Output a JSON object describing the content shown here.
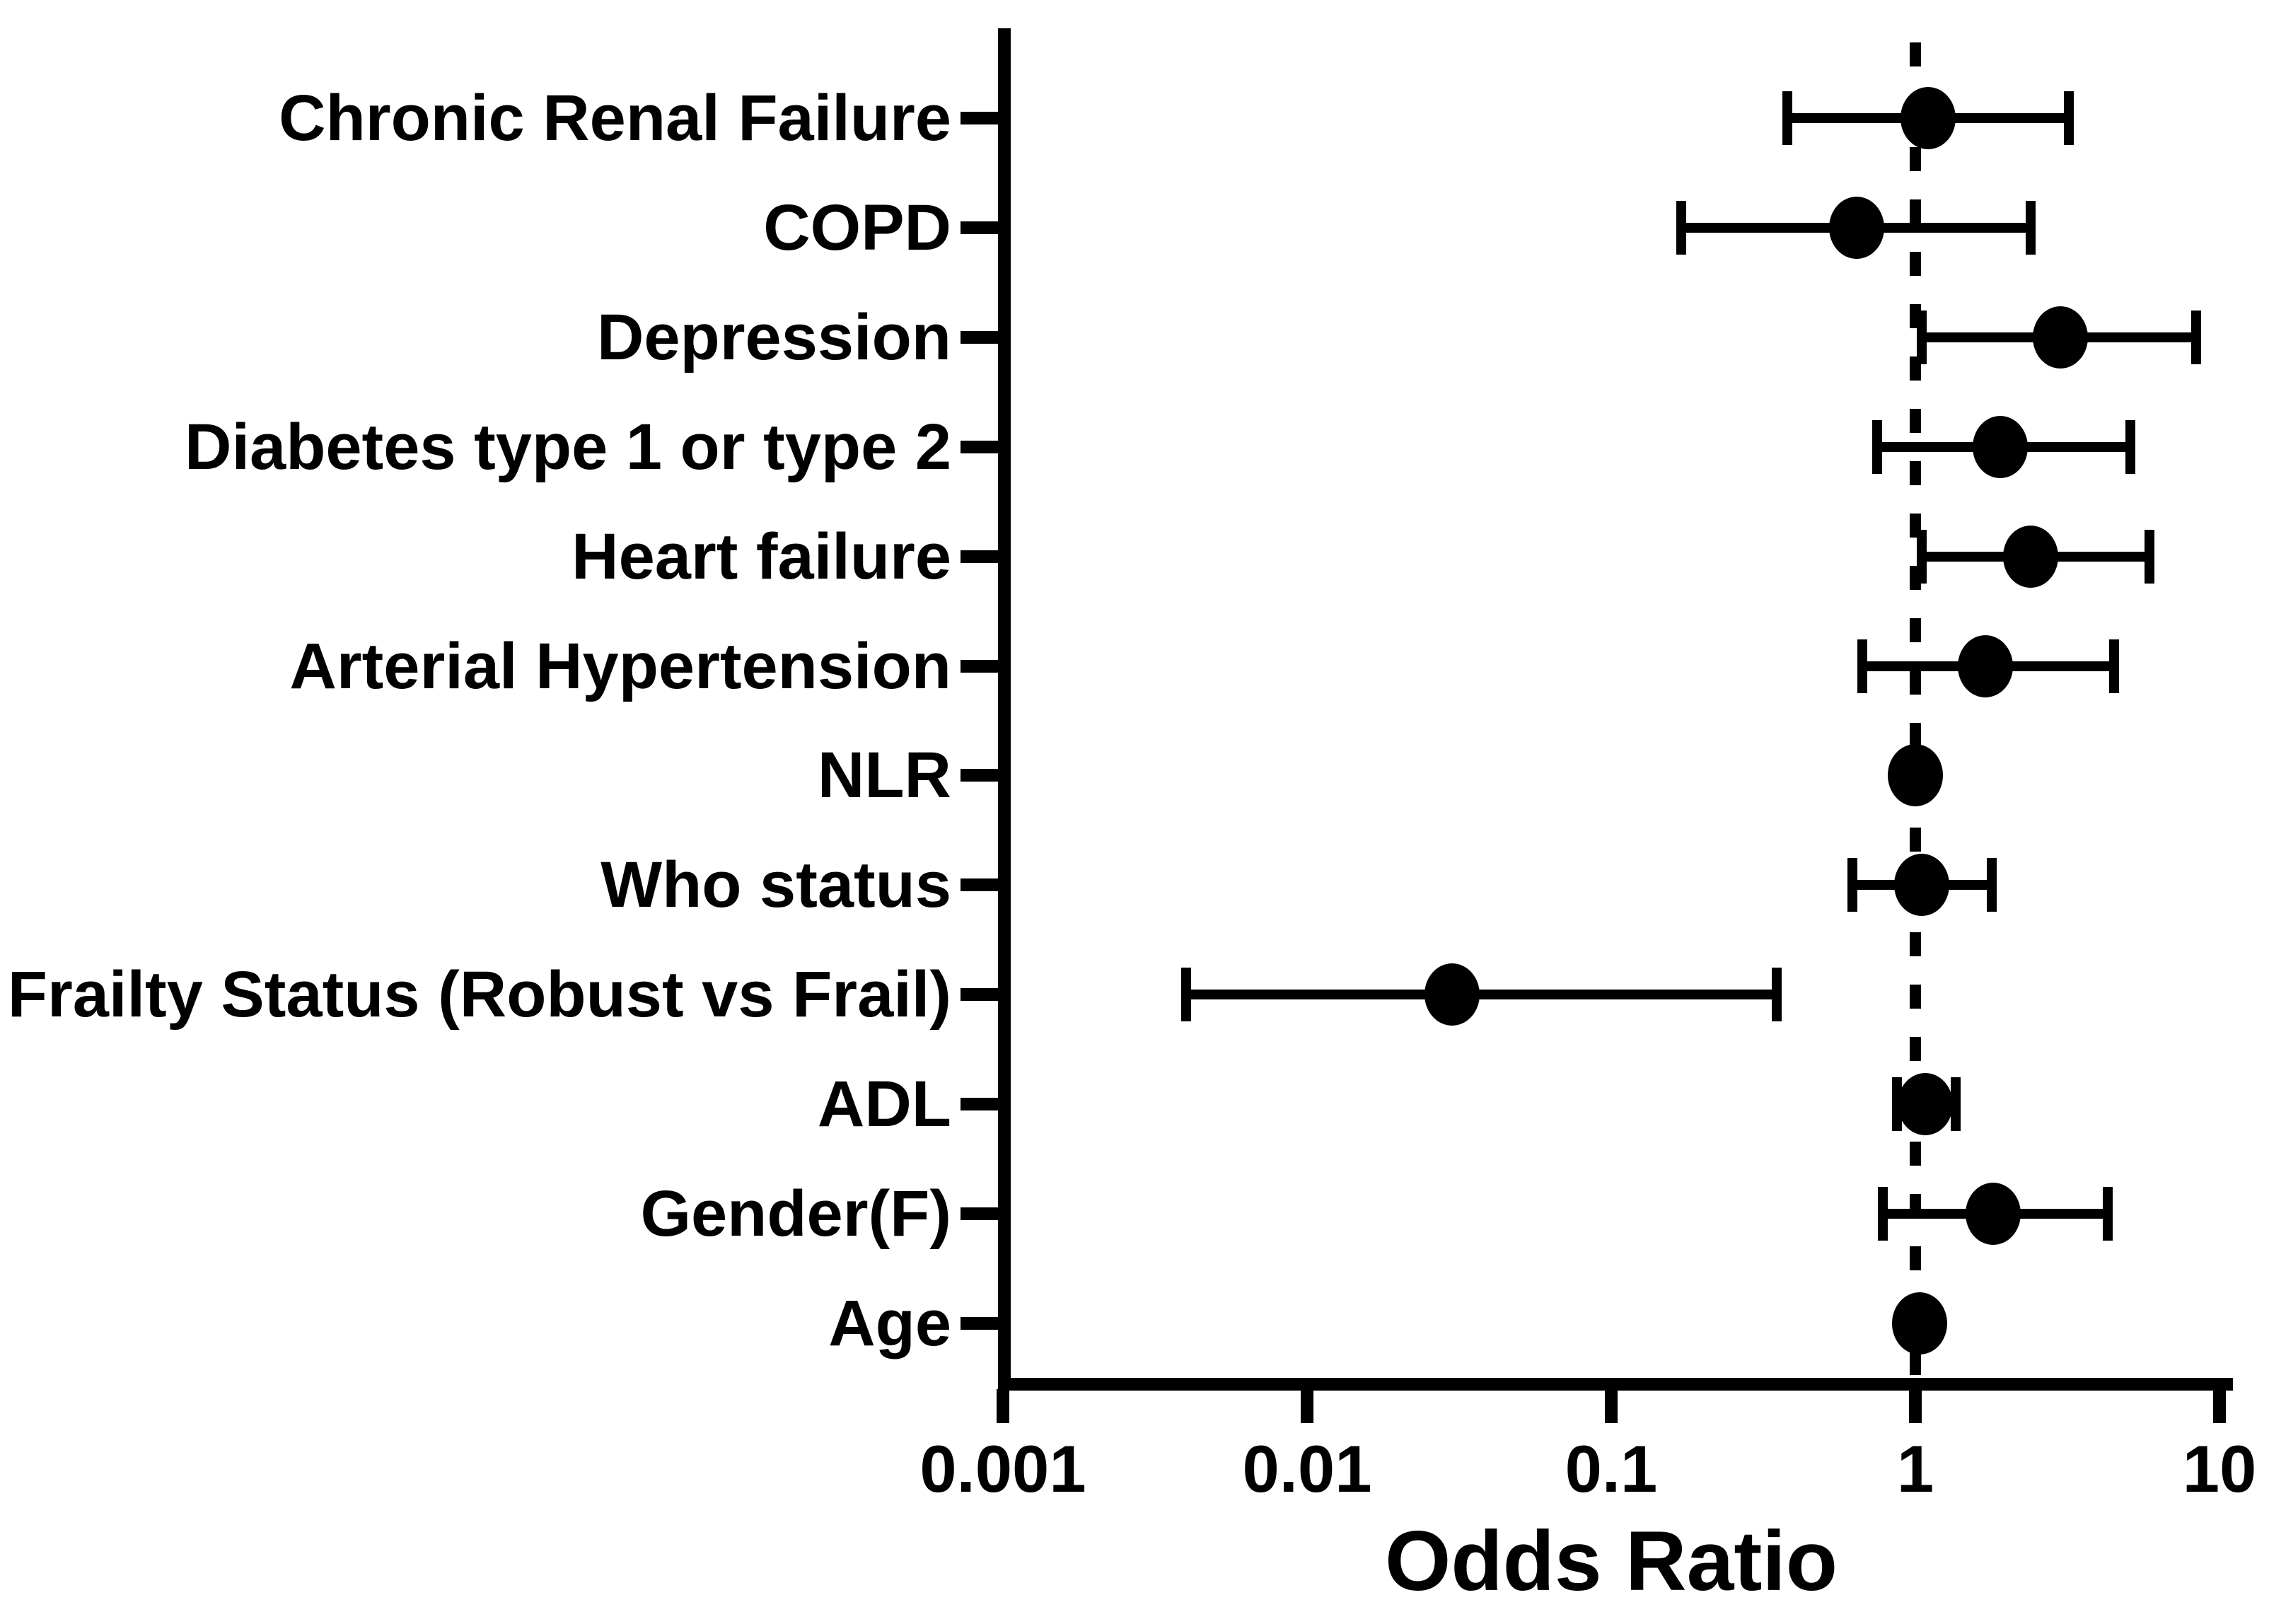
{
  "figure": {
    "background_color": "#ffffff",
    "ink_color": "#000000"
  },
  "chart_data": {
    "type": "scatter",
    "variant": "forest-plot",
    "orientation": "horizontal",
    "title": "",
    "xlabel": "Odds Ratio",
    "ylabel": "",
    "x_scale": "log10",
    "xlim": [
      0.001,
      10
    ],
    "x_ticks": [
      "0.001",
      "0.01",
      "0.1",
      "1",
      "10"
    ],
    "x_tick_values": [
      0.001,
      0.01,
      0.1,
      1,
      10
    ],
    "grid": false,
    "legend": null,
    "reference_line": {
      "x": 1,
      "style": "dashed"
    },
    "rows": [
      {
        "label": "Chronic Renal Failure",
        "or": 1.1,
        "ci_low": 0.38,
        "ci_high": 3.2
      },
      {
        "label": "COPD",
        "or": 0.64,
        "ci_low": 0.17,
        "ci_high": 2.4
      },
      {
        "label": "Depression",
        "or": 3.0,
        "ci_low": 1.05,
        "ci_high": 8.4
      },
      {
        "label": "Diabetes type 1 or type 2",
        "or": 1.9,
        "ci_low": 0.75,
        "ci_high": 5.1
      },
      {
        "label": "Heart failure",
        "or": 2.4,
        "ci_low": 1.05,
        "ci_high": 5.9
      },
      {
        "label": "Arterial Hypertension",
        "or": 1.7,
        "ci_low": 0.67,
        "ci_high": 4.5
      },
      {
        "label": "NLR",
        "or": 1.0,
        "ci_low": 0.97,
        "ci_high": 1.04
      },
      {
        "label": "Who status",
        "or": 1.05,
        "ci_low": 0.62,
        "ci_high": 1.78
      },
      {
        "label": "Frailty Status (Robust vs Frail)",
        "or": 0.03,
        "ci_low": 0.004,
        "ci_high": 0.35
      },
      {
        "label": "ADL",
        "or": 1.08,
        "ci_low": 0.87,
        "ci_high": 1.36
      },
      {
        "label": "Gender(F)",
        "or": 1.8,
        "ci_low": 0.78,
        "ci_high": 4.3
      },
      {
        "label": "Age",
        "or": 1.03,
        "ci_low": 0.99,
        "ci_high": 1.08
      }
    ]
  }
}
